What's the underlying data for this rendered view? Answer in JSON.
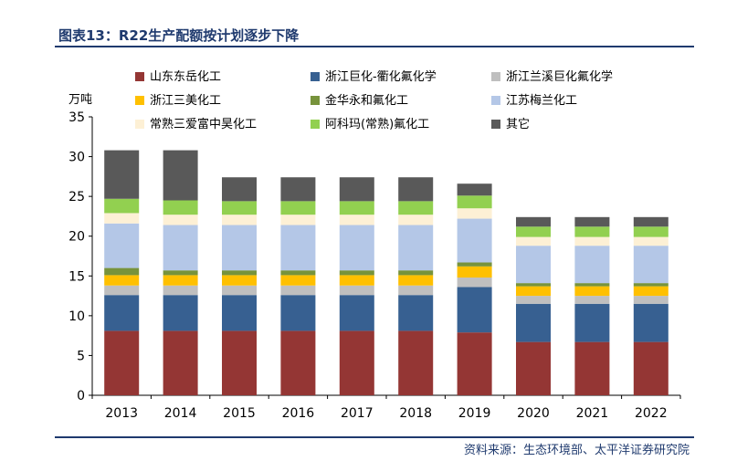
{
  "title": "图表13：R22生产配额按计划逐步下降",
  "source": "资料来源：生态环境部、太平洋证券研究院",
  "chart_data": {
    "type": "bar",
    "stacked": true,
    "ylabel": "万吨",
    "ylim": [
      0,
      35
    ],
    "yticks": [
      0,
      5,
      10,
      15,
      20,
      25,
      30,
      35
    ],
    "categories": [
      "2013",
      "2014",
      "2015",
      "2016",
      "2017",
      "2018",
      "2019",
      "2020",
      "2021",
      "2022"
    ],
    "legend_position": "top",
    "series": [
      {
        "name": "山东东岳化工",
        "color": "#943634",
        "values": [
          8.1,
          8.1,
          8.1,
          8.1,
          8.1,
          8.1,
          7.9,
          6.7,
          6.7,
          6.7
        ]
      },
      {
        "name": "浙江巨化-衢化氟化学",
        "color": "#376091",
        "values": [
          4.5,
          4.5,
          4.5,
          4.5,
          4.5,
          4.5,
          5.7,
          4.8,
          4.8,
          4.8
        ]
      },
      {
        "name": "浙江兰溪巨化氟化学",
        "color": "#bfbfbf",
        "values": [
          1.2,
          1.2,
          1.2,
          1.2,
          1.2,
          1.2,
          1.2,
          1.0,
          1.0,
          1.0
        ]
      },
      {
        "name": "浙江三美化工",
        "color": "#ffc000",
        "values": [
          1.3,
          1.3,
          1.3,
          1.3,
          1.3,
          1.3,
          1.4,
          1.2,
          1.2,
          1.2
        ]
      },
      {
        "name": "金华永和氟化工",
        "color": "#77933c",
        "values": [
          0.9,
          0.6,
          0.6,
          0.6,
          0.6,
          0.6,
          0.5,
          0.4,
          0.4,
          0.4
        ]
      },
      {
        "name": "江苏梅兰化工",
        "color": "#b4c7e7",
        "values": [
          5.6,
          5.7,
          5.7,
          5.7,
          5.7,
          5.7,
          5.5,
          4.7,
          4.7,
          4.7
        ]
      },
      {
        "name": "常熟三爱富中昊化工",
        "color": "#fdf0d5",
        "values": [
          1.3,
          1.3,
          1.3,
          1.3,
          1.3,
          1.3,
          1.3,
          1.1,
          1.1,
          1.1
        ]
      },
      {
        "name": "阿科玛(常熟)氟化工",
        "color": "#92d050",
        "values": [
          1.8,
          1.8,
          1.7,
          1.7,
          1.7,
          1.7,
          1.6,
          1.3,
          1.3,
          1.3
        ]
      },
      {
        "name": "其它",
        "color": "#595959",
        "values": [
          6.1,
          6.3,
          3.0,
          3.0,
          3.0,
          3.0,
          1.5,
          1.2,
          1.2,
          1.2
        ]
      }
    ]
  }
}
